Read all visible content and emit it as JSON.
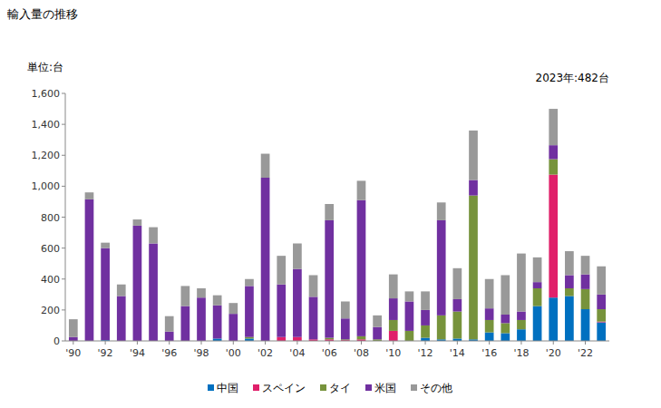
{
  "chart_data": {
    "type": "bar",
    "title": "輸入量の推移",
    "y_label": "単位:台",
    "annotation": "2023年:482台",
    "stacked": true,
    "grid": false,
    "legend": "bottom",
    "categories": [
      "'90",
      null,
      "'92",
      null,
      "'94",
      null,
      "'96",
      null,
      "'98",
      null,
      "'00",
      null,
      "'02",
      null,
      "'04",
      null,
      "'06",
      null,
      "'08",
      null,
      "'10",
      null,
      "'12",
      null,
      "'14",
      null,
      "'16",
      null,
      "'18",
      null,
      "'20",
      null,
      "'22",
      null
    ],
    "series": [
      {
        "name": "中国",
        "color": "#0070c0",
        "values": [
          0,
          0,
          5,
          0,
          0,
          0,
          0,
          0,
          0,
          15,
          0,
          15,
          0,
          0,
          0,
          0,
          0,
          0,
          0,
          0,
          0,
          0,
          20,
          10,
          15,
          10,
          55,
          50,
          75,
          225,
          280,
          290,
          205,
          120
        ]
      },
      {
        "name": "スペイン",
        "color": "#e0206a",
        "values": [
          0,
          0,
          0,
          0,
          0,
          0,
          0,
          0,
          0,
          0,
          0,
          0,
          0,
          25,
          25,
          10,
          10,
          5,
          10,
          0,
          65,
          0,
          0,
          0,
          0,
          0,
          0,
          0,
          0,
          0,
          795,
          0,
          0,
          5
        ]
      },
      {
        "name": "タイ",
        "color": "#77933c",
        "values": [
          0,
          0,
          0,
          0,
          0,
          0,
          0,
          0,
          0,
          0,
          0,
          10,
          0,
          0,
          0,
          0,
          10,
          5,
          20,
          10,
          70,
          65,
          80,
          155,
          175,
          930,
          80,
          65,
          60,
          115,
          100,
          50,
          130,
          80
        ]
      },
      {
        "name": "米国",
        "color": "#7030a0",
        "values": [
          25,
          915,
          595,
          290,
          745,
          630,
          60,
          225,
          280,
          215,
          175,
          330,
          1055,
          340,
          440,
          275,
          760,
          135,
          880,
          80,
          140,
          190,
          100,
          615,
          80,
          100,
          75,
          55,
          55,
          40,
          90,
          85,
          95,
          95
        ]
      },
      {
        "name": "その他",
        "color": "#999999",
        "values": [
          115,
          45,
          35,
          75,
          40,
          105,
          100,
          130,
          60,
          65,
          70,
          45,
          155,
          185,
          165,
          140,
          105,
          110,
          125,
          75,
          155,
          65,
          120,
          115,
          200,
          320,
          190,
          255,
          375,
          160,
          235,
          155,
          120,
          182
        ]
      }
    ],
    "ylim": [
      0,
      1600
    ],
    "yticks": [
      0,
      200,
      400,
      600,
      800,
      {
        "value": 1000,
        "label": "1,000"
      },
      {
        "value": 1200,
        "label": "1,200"
      },
      {
        "value": 1400,
        "label": "1,400"
      },
      {
        "value": 1600,
        "label": "1,600"
      }
    ]
  }
}
